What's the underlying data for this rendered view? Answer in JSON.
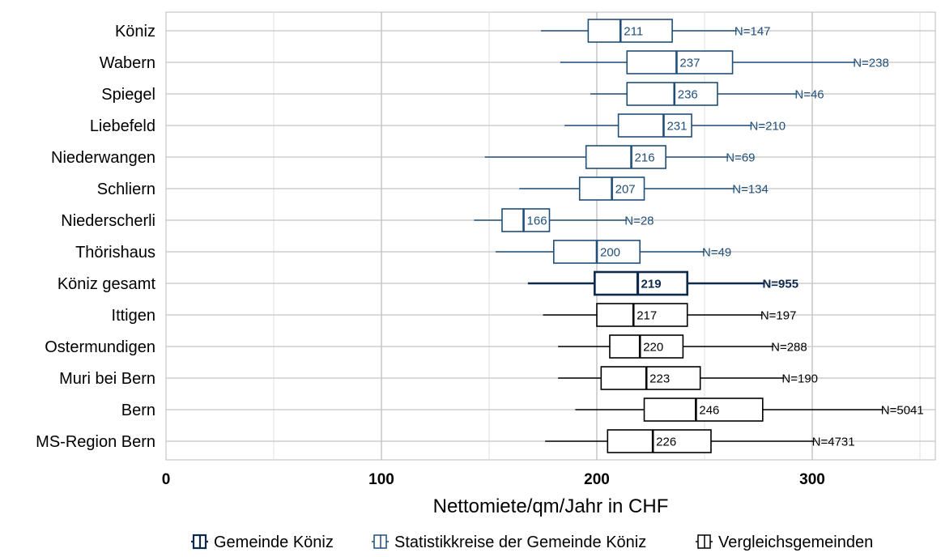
{
  "chart_data": {
    "type": "boxplot",
    "orientation": "horizontal",
    "title": "",
    "xlabel": "Nettomiete/qm/Jahr in CHF",
    "ylabel": "",
    "xlim": [
      0,
      360
    ],
    "xticks": [
      0,
      100,
      200,
      300
    ],
    "grid": true,
    "legend_position": "bottom",
    "groups": [
      {
        "name": "Gemeinde Köniz",
        "color": "#0d2a4d"
      },
      {
        "name": "Statistikkreise der Gemeinde Köniz",
        "color": "#1f4e79"
      },
      {
        "name": "Vergleichsgemeinden",
        "color": "#000000"
      }
    ],
    "series": [
      {
        "category": "Köniz",
        "group": "Statistikkreise der Gemeinde Köniz",
        "whisker_low": 174,
        "q1": 196,
        "median": 211,
        "q3": 235,
        "whisker_high": 265,
        "median_label": "211",
        "n_label": "N=147"
      },
      {
        "category": "Wabern",
        "group": "Statistikkreise der Gemeinde Köniz",
        "whisker_low": 183,
        "q1": 214,
        "median": 237,
        "q3": 263,
        "whisker_high": 320,
        "median_label": "237",
        "n_label": "N=238"
      },
      {
        "category": "Spiegel",
        "group": "Statistikkreise der Gemeinde Köniz",
        "whisker_low": 197,
        "q1": 214,
        "median": 236,
        "q3": 256,
        "whisker_high": 293,
        "median_label": "236",
        "n_label": "N=46"
      },
      {
        "category": "Liebefeld",
        "group": "Statistikkreise der Gemeinde Köniz",
        "whisker_low": 185,
        "q1": 210,
        "median": 231,
        "q3": 244,
        "whisker_high": 272,
        "median_label": "231",
        "n_label": "N=210"
      },
      {
        "category": "Niederwangen",
        "group": "Statistikkreise der Gemeinde Köniz",
        "whisker_low": 148,
        "q1": 195,
        "median": 216,
        "q3": 232,
        "whisker_high": 261,
        "median_label": "216",
        "n_label": "N=69"
      },
      {
        "category": "Schliern",
        "group": "Statistikkreise der Gemeinde Köniz",
        "whisker_low": 164,
        "q1": 192,
        "median": 207,
        "q3": 222,
        "whisker_high": 264,
        "median_label": "207",
        "n_label": "N=134"
      },
      {
        "category": "Niederscherli",
        "group": "Statistikkreise der Gemeinde Köniz",
        "whisker_low": 143,
        "q1": 156,
        "median": 166,
        "q3": 178,
        "whisker_high": 214,
        "median_label": "166",
        "n_label": "N=28"
      },
      {
        "category": "Thörishaus",
        "group": "Statistikkreise der Gemeinde Köniz",
        "whisker_low": 153,
        "q1": 180,
        "median": 200,
        "q3": 220,
        "whisker_high": 250,
        "median_label": "200",
        "n_label": "N=49"
      },
      {
        "category": "Köniz gesamt",
        "group": "Gemeinde Köniz",
        "whisker_low": 168,
        "q1": 199,
        "median": 219,
        "q3": 242,
        "whisker_high": 278,
        "median_label": "219",
        "n_label": "N=955"
      },
      {
        "category": "Ittigen",
        "group": "Vergleichsgemeinden",
        "whisker_low": 175,
        "q1": 200,
        "median": 217,
        "q3": 242,
        "whisker_high": 277,
        "median_label": "217",
        "n_label": "N=197"
      },
      {
        "category": "Ostermundigen",
        "group": "Vergleichsgemeinden",
        "whisker_low": 182,
        "q1": 206,
        "median": 220,
        "q3": 240,
        "whisker_high": 282,
        "median_label": "220",
        "n_label": "N=288"
      },
      {
        "category": "Muri bei Bern",
        "group": "Vergleichsgemeinden",
        "whisker_low": 182,
        "q1": 202,
        "median": 223,
        "q3": 248,
        "whisker_high": 287,
        "median_label": "223",
        "n_label": "N=190"
      },
      {
        "category": "Bern",
        "group": "Vergleichsgemeinden",
        "whisker_low": 190,
        "q1": 222,
        "median": 246,
        "q3": 277,
        "whisker_high": 333,
        "median_label": "246",
        "n_label": "N=5041"
      },
      {
        "category": "MS-Region Bern",
        "group": "Vergleichsgemeinden",
        "whisker_low": 176,
        "q1": 205,
        "median": 226,
        "q3": 253,
        "whisker_high": 301,
        "median_label": "226",
        "n_label": "N=4731"
      }
    ]
  }
}
